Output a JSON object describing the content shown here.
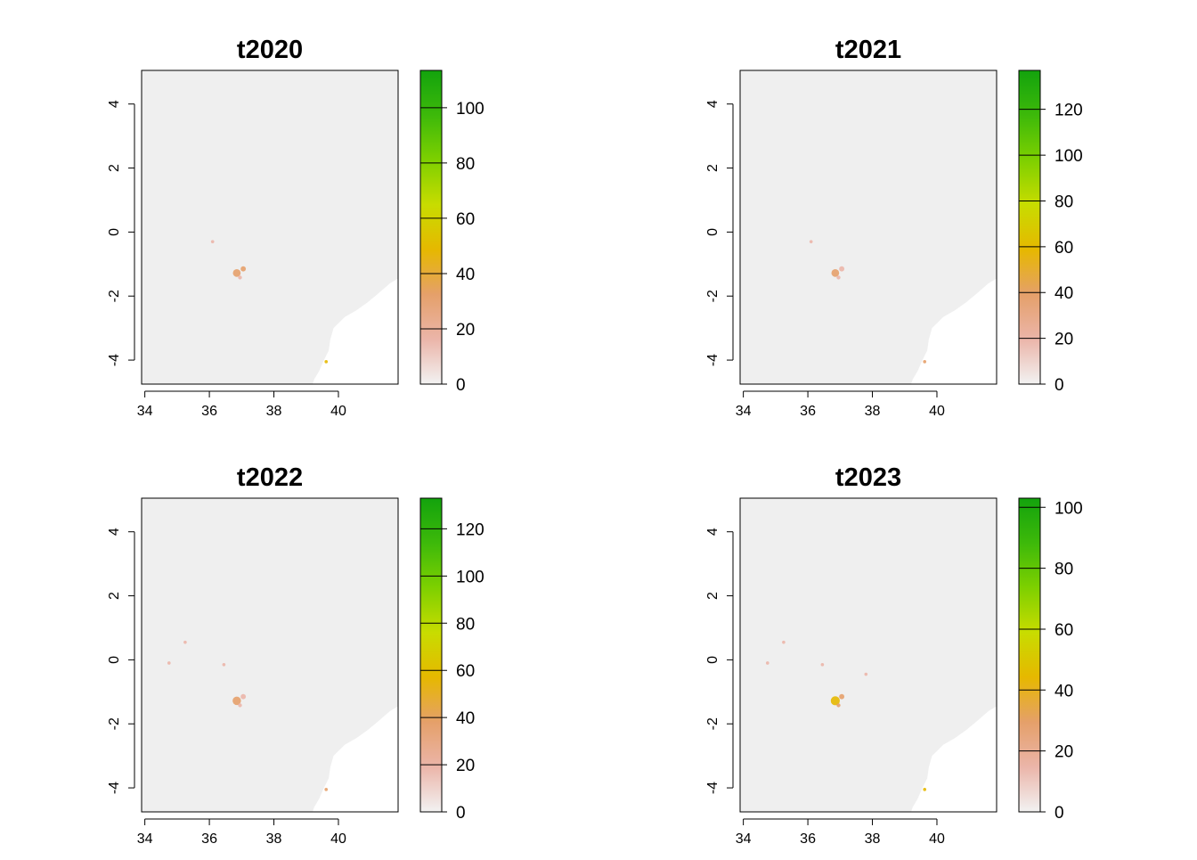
{
  "chart_data": [
    {
      "type": "heatmap",
      "title": "t2020",
      "xlim": [
        33.9,
        41.85
      ],
      "ylim": [
        -4.75,
        5.05
      ],
      "xticks": [
        34,
        36,
        38,
        40
      ],
      "yticks": [
        -4,
        -2,
        0,
        2,
        4
      ],
      "color_scale": {
        "min": 0,
        "max": 113.5,
        "ticks": [
          0,
          20,
          40,
          60,
          80,
          100
        ]
      },
      "hotspots": [
        {
          "lon": 36.85,
          "lat": -1.28,
          "value": 35,
          "r": 0.12
        },
        {
          "lon": 37.05,
          "lat": -1.15,
          "value": 25,
          "r": 0.08
        },
        {
          "lon": 36.95,
          "lat": -1.42,
          "value": 22,
          "r": 0.06
        },
        {
          "lon": 39.62,
          "lat": -4.05,
          "value": 45,
          "r": 0.05
        },
        {
          "lon": 36.1,
          "lat": -0.3,
          "value": 15,
          "r": 0.05
        }
      ]
    },
    {
      "type": "heatmap",
      "title": "t2021",
      "xlim": [
        33.9,
        41.85
      ],
      "ylim": [
        -4.75,
        5.05
      ],
      "xticks": [
        34,
        36,
        38,
        40
      ],
      "yticks": [
        -4,
        -2,
        0,
        2,
        4
      ],
      "color_scale": {
        "min": 0,
        "max": 137,
        "ticks": [
          0,
          20,
          40,
          60,
          80,
          100,
          120
        ]
      },
      "hotspots": [
        {
          "lon": 36.85,
          "lat": -1.28,
          "value": 35,
          "r": 0.12
        },
        {
          "lon": 37.05,
          "lat": -1.15,
          "value": 25,
          "r": 0.08
        },
        {
          "lon": 36.95,
          "lat": -1.42,
          "value": 22,
          "r": 0.06
        },
        {
          "lon": 39.62,
          "lat": -4.05,
          "value": 45,
          "r": 0.05
        },
        {
          "lon": 36.1,
          "lat": -0.3,
          "value": 15,
          "r": 0.05
        }
      ]
    },
    {
      "type": "heatmap",
      "title": "t2022",
      "xlim": [
        33.9,
        41.85
      ],
      "ylim": [
        -4.75,
        5.05
      ],
      "xticks": [
        34,
        36,
        38,
        40
      ],
      "yticks": [
        -4,
        -2,
        0,
        2,
        4
      ],
      "color_scale": {
        "min": 0,
        "max": 133,
        "ticks": [
          0,
          20,
          40,
          60,
          80,
          100,
          120
        ]
      },
      "hotspots": [
        {
          "lon": 36.85,
          "lat": -1.28,
          "value": 38,
          "r": 0.13
        },
        {
          "lon": 37.05,
          "lat": -1.15,
          "value": 28,
          "r": 0.08
        },
        {
          "lon": 36.95,
          "lat": -1.42,
          "value": 24,
          "r": 0.06
        },
        {
          "lon": 39.62,
          "lat": -4.05,
          "value": 45,
          "r": 0.05
        },
        {
          "lon": 36.45,
          "lat": -0.15,
          "value": 18,
          "r": 0.05
        },
        {
          "lon": 35.25,
          "lat": 0.55,
          "value": 15,
          "r": 0.05
        },
        {
          "lon": 34.75,
          "lat": -0.1,
          "value": 14,
          "r": 0.05
        }
      ]
    },
    {
      "type": "heatmap",
      "title": "t2023",
      "xlim": [
        33.9,
        41.85
      ],
      "ylim": [
        -4.75,
        5.05
      ],
      "xticks": [
        34,
        36,
        38,
        40
      ],
      "yticks": [
        -4,
        -2,
        0,
        2,
        4
      ],
      "color_scale": {
        "min": 0,
        "max": 103,
        "ticks": [
          0,
          20,
          40,
          60,
          80,
          100
        ]
      },
      "hotspots": [
        {
          "lon": 36.85,
          "lat": -1.28,
          "value": 40,
          "r": 0.14
        },
        {
          "lon": 37.05,
          "lat": -1.15,
          "value": 30,
          "r": 0.08
        },
        {
          "lon": 36.95,
          "lat": -1.42,
          "value": 25,
          "r": 0.06
        },
        {
          "lon": 39.62,
          "lat": -4.05,
          "value": 48,
          "r": 0.05
        },
        {
          "lon": 36.45,
          "lat": -0.15,
          "value": 20,
          "r": 0.05
        },
        {
          "lon": 35.25,
          "lat": 0.55,
          "value": 16,
          "r": 0.05
        },
        {
          "lon": 34.75,
          "lat": -0.1,
          "value": 15,
          "r": 0.05
        },
        {
          "lon": 37.8,
          "lat": -0.45,
          "value": 14,
          "r": 0.05
        }
      ]
    }
  ],
  "colors": {
    "land": "#efefef",
    "sea": "#ffffff",
    "axis": "#000000",
    "ramp": [
      "#f2f2f2",
      "#ebb5a9",
      "#e5a06a",
      "#e6b800",
      "#c8dc00",
      "#7ed000",
      "#3db90a",
      "#13a30d"
    ]
  }
}
